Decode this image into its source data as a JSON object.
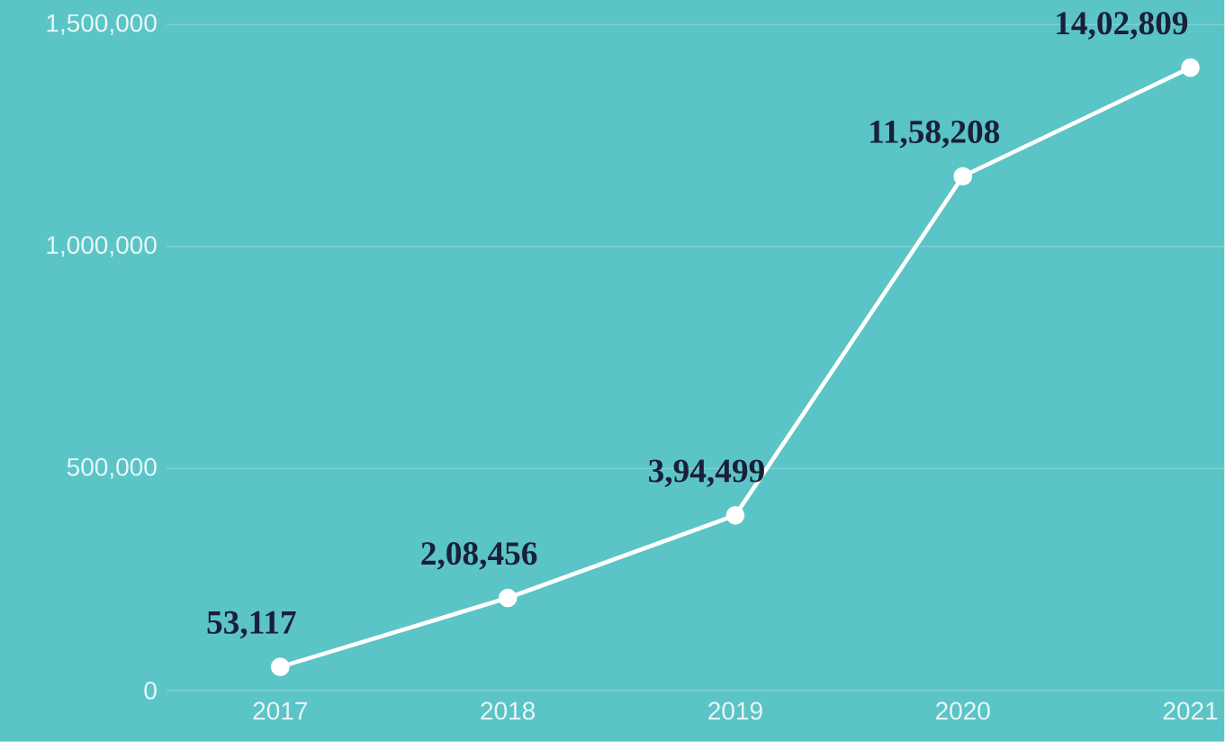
{
  "chart_data": {
    "type": "line",
    "categories": [
      "2017",
      "2018",
      "2019",
      "2020",
      "2021"
    ],
    "values": [
      53117,
      208456,
      394499,
      1158208,
      1402809
    ],
    "value_labels": [
      "53,117",
      "2,08,456",
      "3,94,499",
      "11,58,208",
      "14,02,809"
    ],
    "color": "#ffffff",
    "marker": "circle",
    "line_style": "solid",
    "ylim": [
      0,
      1555000
    ],
    "yticks": [
      0,
      {
        "value": 500000,
        "label": "500,000"
      },
      {
        "value": 1000000,
        "label": "1,000,000"
      },
      {
        "value": 1500000,
        "label": "1,500,000"
      }
    ],
    "grid": "y"
  }
}
